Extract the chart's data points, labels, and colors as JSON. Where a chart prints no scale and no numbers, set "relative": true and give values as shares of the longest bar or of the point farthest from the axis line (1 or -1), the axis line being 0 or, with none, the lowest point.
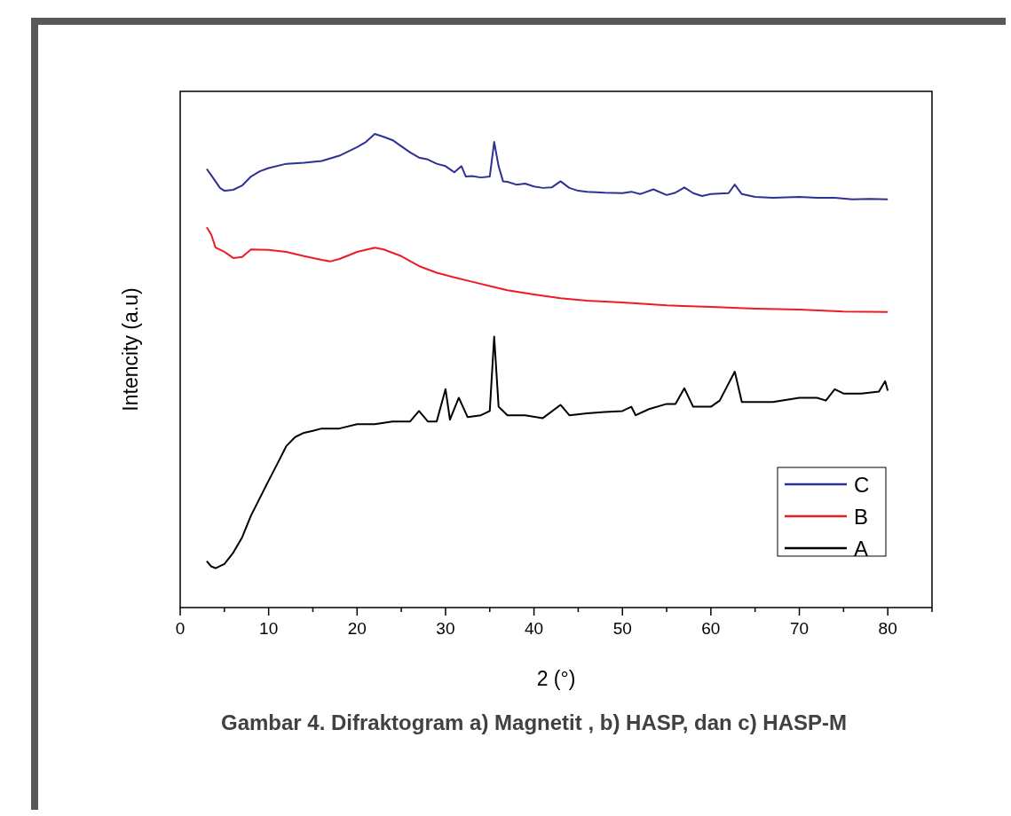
{
  "chart_data": {
    "type": "line",
    "title": "Gambar 4.  Difraktogram a) Magnetit , b) HASP, dan c) HASP-M",
    "xlabel": "2  (°)",
    "ylabel": "Intencity (a.u)",
    "relative": true,
    "xlim": [
      0,
      85
    ],
    "xticks": [
      0,
      {
        "value": 5,
        "label": null
      },
      10,
      {
        "value": 15,
        "label": null
      },
      20,
      {
        "value": 25,
        "label": null
      },
      30,
      {
        "value": 35,
        "label": null
      },
      40,
      {
        "value": 45,
        "label": null
      },
      50,
      {
        "value": 55,
        "label": null
      },
      60,
      {
        "value": 65,
        "label": null
      },
      70,
      {
        "value": 75,
        "label": null
      },
      80,
      {
        "value": 85,
        "label": null
      }
    ],
    "legend": "bottom right",
    "grid": false,
    "line_style": "solid",
    "series": [
      {
        "name": "C",
        "color": "#2e3192",
        "x": [
          3,
          3.5,
          4.5,
          5,
          6,
          7,
          8,
          9,
          10,
          12,
          14,
          16,
          18,
          20,
          21,
          22,
          23,
          24,
          25,
          26,
          27,
          28,
          29,
          30,
          31,
          31.8,
          32.3,
          33,
          34,
          35,
          35.5,
          36,
          36.5,
          37,
          38,
          39,
          40,
          41,
          42,
          43,
          44,
          45,
          46,
          48,
          50,
          51,
          52,
          53.5,
          55,
          56,
          57,
          58,
          59,
          60,
          62,
          62.7,
          63.5,
          65,
          67,
          70,
          72,
          74,
          76,
          78,
          80
        ],
        "values": [
          0.926,
          0.913,
          0.886,
          0.88,
          0.882,
          0.891,
          0.91,
          0.921,
          0.928,
          0.937,
          0.939,
          0.943,
          0.954,
          0.972,
          0.983,
          1.0,
          0.994,
          0.987,
          0.974,
          0.961,
          0.95,
          0.946,
          0.937,
          0.932,
          0.919,
          0.932,
          0.91,
          0.911,
          0.908,
          0.91,
          0.983,
          0.932,
          0.9,
          0.899,
          0.893,
          0.895,
          0.889,
          0.886,
          0.887,
          0.9,
          0.886,
          0.88,
          0.878,
          0.876,
          0.875,
          0.878,
          0.873,
          0.883,
          0.871,
          0.876,
          0.887,
          0.875,
          0.869,
          0.873,
          0.875,
          0.893,
          0.873,
          0.867,
          0.865,
          0.867,
          0.865,
          0.865,
          0.862,
          0.863,
          0.862
        ]
      },
      {
        "name": "B",
        "color": "#ed1c24",
        "x": [
          3,
          3.5,
          4,
          5,
          6,
          7,
          8,
          10,
          12,
          14,
          16,
          17,
          18,
          20,
          22,
          23,
          25,
          27,
          29,
          31,
          33,
          35,
          37,
          40,
          43,
          46,
          50,
          55,
          60,
          65,
          70,
          75,
          80
        ],
        "values": [
          0.803,
          0.788,
          0.76,
          0.751,
          0.738,
          0.74,
          0.756,
          0.755,
          0.751,
          0.742,
          0.734,
          0.731,
          0.736,
          0.751,
          0.76,
          0.756,
          0.742,
          0.721,
          0.707,
          0.697,
          0.688,
          0.679,
          0.67,
          0.661,
          0.653,
          0.648,
          0.644,
          0.638,
          0.635,
          0.631,
          0.629,
          0.625,
          0.624
        ]
      },
      {
        "name": "A",
        "color": "#000000",
        "x": [
          3,
          3.5,
          4,
          5,
          6,
          7,
          8,
          9,
          10,
          11,
          12,
          13,
          14,
          15,
          16,
          18,
          20,
          22,
          24,
          26,
          27,
          28,
          29,
          30,
          30.5,
          31.5,
          32.5,
          34,
          35,
          35.5,
          36,
          37,
          39,
          41,
          43,
          44,
          46,
          48,
          50,
          51,
          51.5,
          53,
          55,
          56,
          57,
          58,
          60,
          61,
          62.7,
          63.5,
          65,
          67,
          70,
          72,
          73,
          74,
          75,
          77,
          79,
          79.7,
          80
        ],
        "values": [
          0.098,
          0.087,
          0.083,
          0.092,
          0.116,
          0.148,
          0.194,
          0.231,
          0.268,
          0.304,
          0.341,
          0.36,
          0.369,
          0.373,
          0.378,
          0.378,
          0.387,
          0.387,
          0.393,
          0.393,
          0.415,
          0.393,
          0.393,
          0.461,
          0.397,
          0.443,
          0.402,
          0.406,
          0.415,
          0.572,
          0.424,
          0.406,
          0.406,
          0.4,
          0.428,
          0.406,
          0.41,
          0.413,
          0.415,
          0.424,
          0.406,
          0.419,
          0.43,
          0.43,
          0.463,
          0.424,
          0.424,
          0.437,
          0.498,
          0.434,
          0.434,
          0.434,
          0.443,
          0.443,
          0.437,
          0.461,
          0.452,
          0.452,
          0.456,
          0.478,
          0.458
        ]
      }
    ]
  }
}
